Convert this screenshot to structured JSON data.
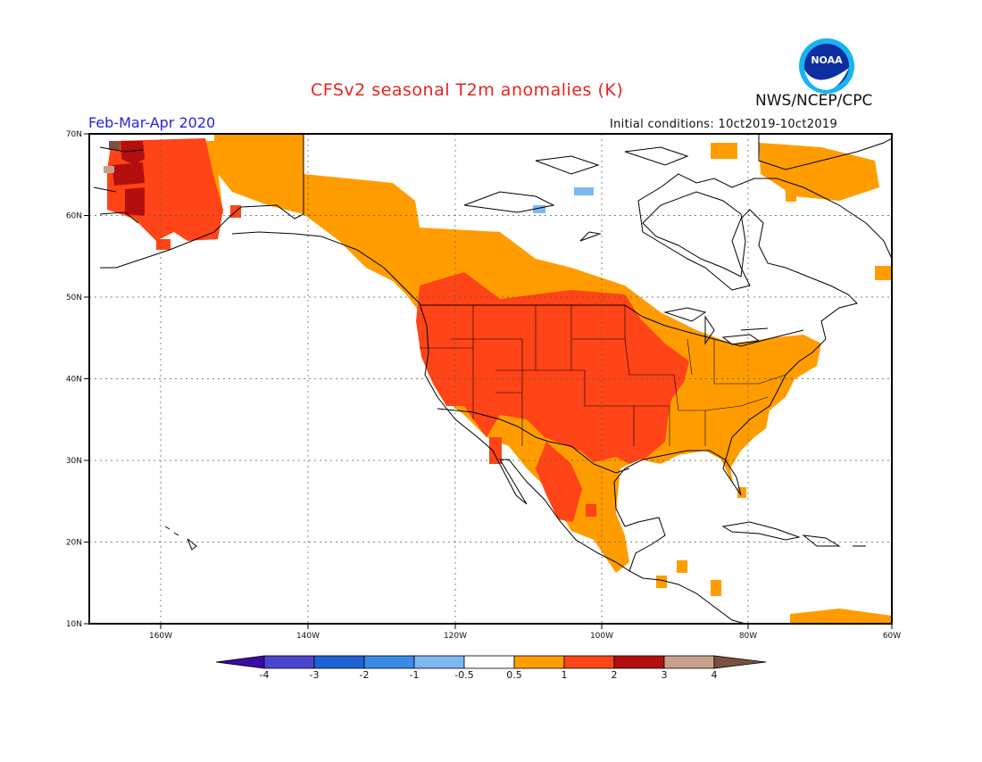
{
  "header": {
    "title": "CFSv2 seasonal T2m anomalies (K)",
    "agency": "NWS/NCEP/CPC",
    "logo_text": "NOAA",
    "period": "Feb-Mar-Apr 2020",
    "initial_conditions": "Initial conditions: 10ct2019-10ct2019"
  },
  "map": {
    "projection": "cylindrical",
    "lon_range": [
      -172,
      -60
    ],
    "lat_range": [
      10,
      70
    ],
    "lat_ticks": [
      "10N",
      "20N",
      "30N",
      "40N",
      "50N",
      "60N",
      "70N"
    ],
    "lon_ticks": [
      "160W",
      "140W",
      "120W",
      "100W",
      "80W",
      "60W"
    ],
    "gridlines": "dotted",
    "background_anomaly": "between -0.5 and 0.5 (white)"
  },
  "colorbar": {
    "labels": [
      "-4",
      "-3",
      "-2",
      "-1",
      "-0.5",
      "0.5",
      "1",
      "2",
      "3",
      "4"
    ],
    "colors": [
      "#3b0aa6",
      "#4e45cf",
      "#1f62d6",
      "#3a8ce6",
      "#7db8f0",
      "#ffffff",
      "#ff9d00",
      "#ff4417",
      "#b30f0f",
      "#c8a08c",
      "#7a5040"
    ]
  }
}
